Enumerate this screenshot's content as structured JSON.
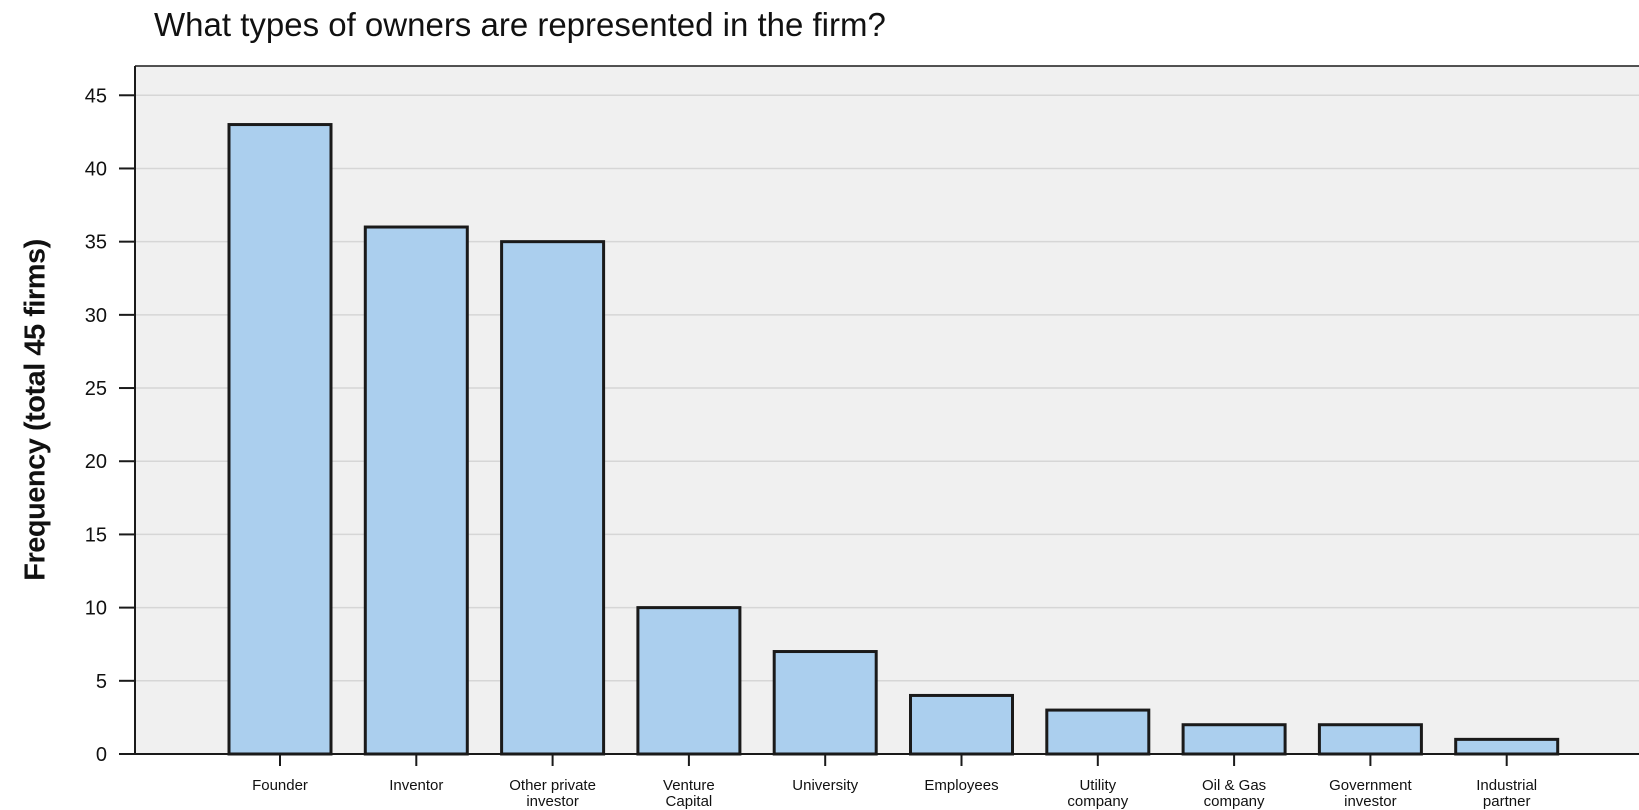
{
  "chart_data": {
    "type": "bar",
    "title": "What types of owners are represented in the firm?",
    "xlabel": "",
    "ylabel": "Frequency (total 45 firms)",
    "ylim": [
      0,
      47
    ],
    "yticks": [
      0,
      5,
      10,
      15,
      20,
      25,
      30,
      35,
      40,
      45
    ],
    "grid": true,
    "categories": [
      [
        "Founder"
      ],
      [
        "Inventor"
      ],
      [
        "Other private",
        "investor"
      ],
      [
        "Venture",
        "Capital"
      ],
      [
        "University"
      ],
      [
        "Employees"
      ],
      [
        "Utility",
        "company"
      ],
      [
        "Oil & Gas",
        "company"
      ],
      [
        "Government",
        "investor"
      ],
      [
        "Industrial",
        "partner"
      ]
    ],
    "values": [
      43,
      36,
      35,
      10,
      7,
      4,
      3,
      2,
      2,
      1
    ],
    "colors": {
      "bar_fill": "#abcfee",
      "bar_stroke": "#1a1a1a",
      "plot_background": "#f0f0f0",
      "gridline": "#d6d6d6"
    }
  }
}
